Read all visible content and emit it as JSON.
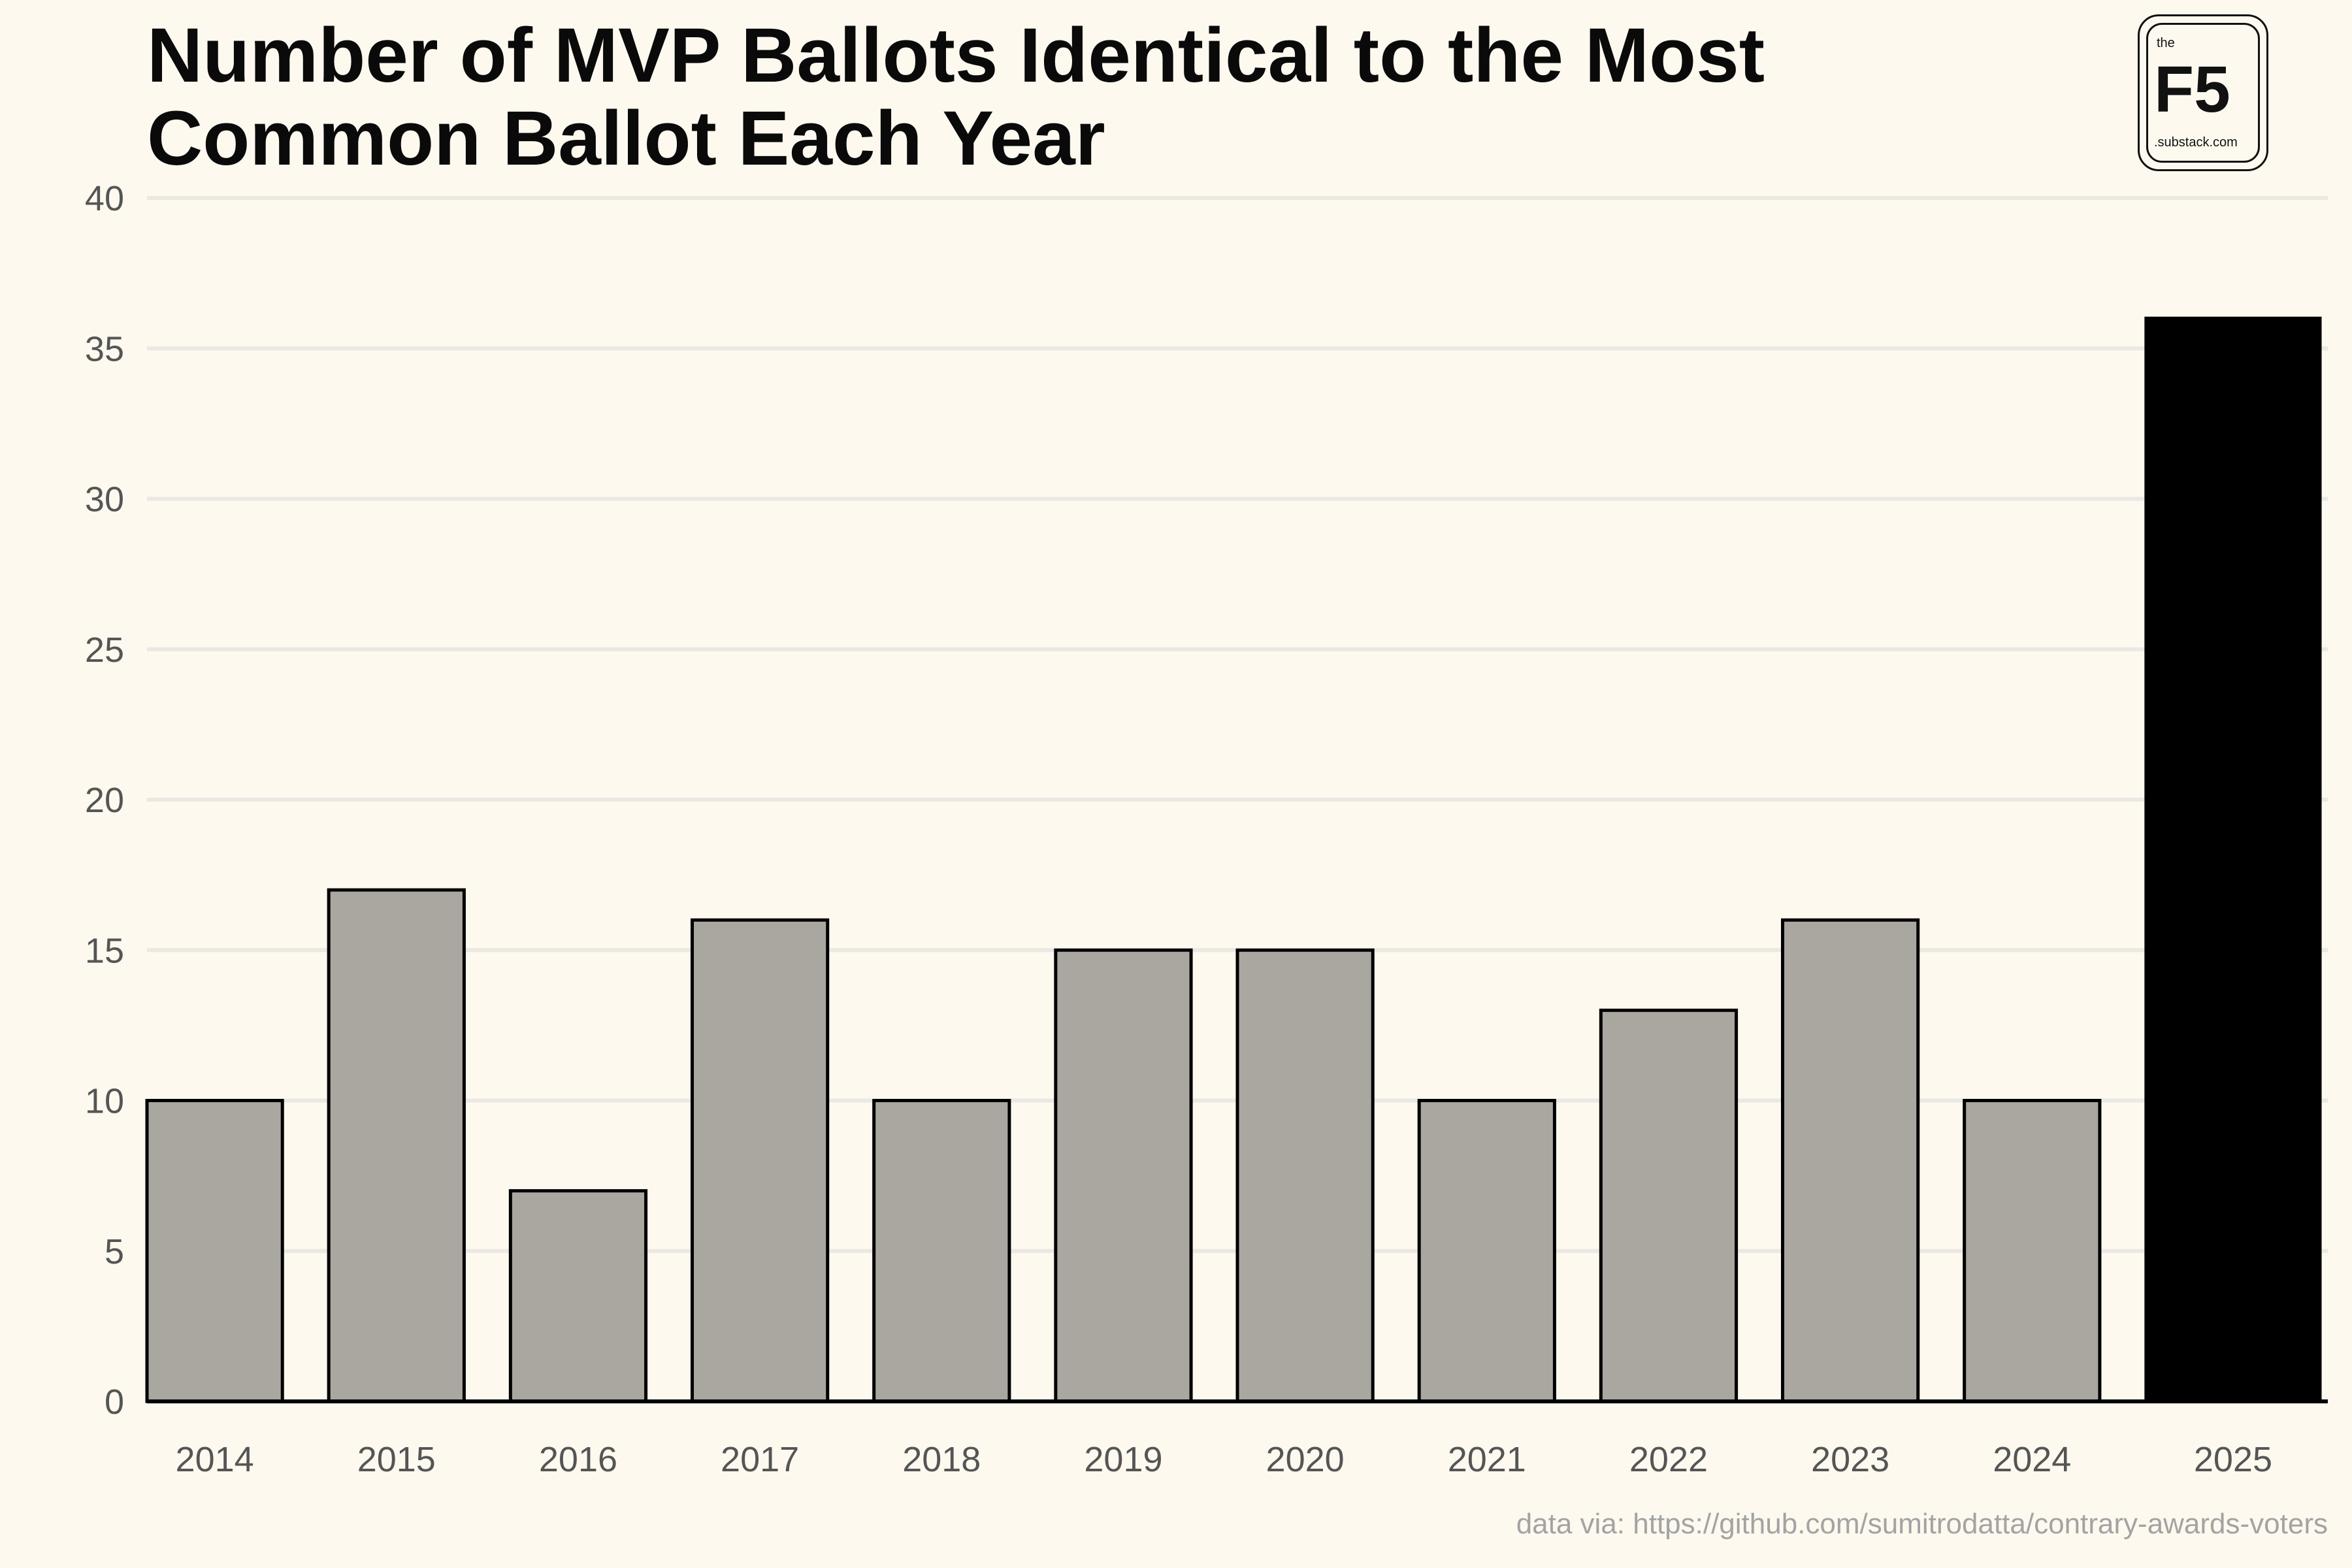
{
  "title": "Number of MVP Ballots Identical to the Most Common Ballot Each Year",
  "logo": {
    "the": "the",
    "name": "F5",
    "domain": ".substack.com"
  },
  "source": "data via: https://github.com/sumitrodatta/contrary-awards-voters",
  "chart_data": {
    "type": "bar",
    "categories": [
      "2014",
      "2015",
      "2016",
      "2017",
      "2018",
      "2019",
      "2020",
      "2021",
      "2022",
      "2023",
      "2024",
      "2025"
    ],
    "values": [
      10,
      17,
      7,
      16,
      10,
      15,
      15,
      10,
      13,
      16,
      10,
      36
    ],
    "ylim": [
      0,
      40
    ],
    "yticks": [
      0,
      5,
      10,
      15,
      20,
      25,
      30,
      35,
      40
    ],
    "grid": "horizontal",
    "colors": {
      "default": "#aaa7a0",
      "highlight": "#000000",
      "edge": "#000000",
      "grid": "#ebe8e4",
      "tick_text": "#555555"
    },
    "highlight_category": "2025"
  }
}
